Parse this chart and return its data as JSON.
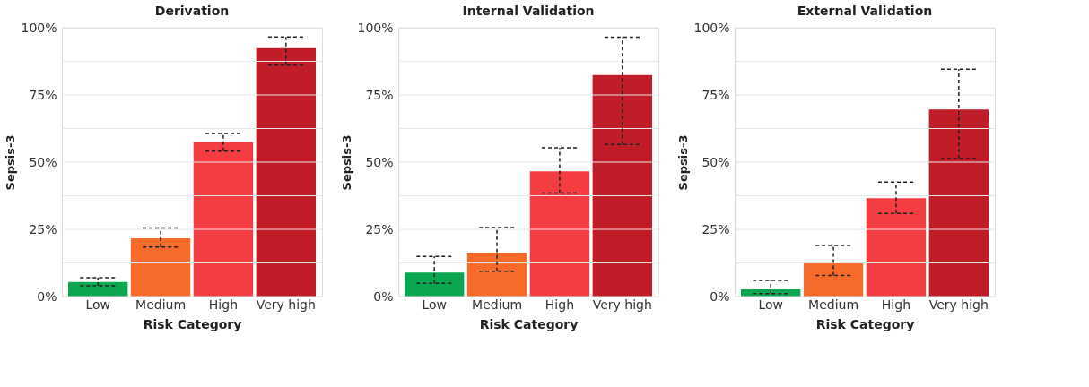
{
  "chart_data": [
    {
      "type": "bar",
      "title": "Derivation",
      "xlabel": "Risk Category",
      "ylabel": "Sepsis-3",
      "categories": [
        "Low",
        "Medium",
        "High",
        "Very high"
      ],
      "values": [
        5.4,
        21.7,
        57.5,
        92.4
      ],
      "errors": [
        [
          4.0,
          7.0
        ],
        [
          18.4,
          25.5
        ],
        [
          54.1,
          60.7
        ],
        [
          86.1,
          96.6
        ]
      ],
      "colors": [
        "#0aa650",
        "#f76b2a",
        "#f43c43",
        "#c11d29"
      ],
      "ylim": [
        0,
        100
      ],
      "yticks": [
        {
          "value": 0,
          "label": "0%"
        },
        {
          "value": 12.5,
          "label": null
        },
        {
          "value": 25,
          "label": "25%"
        },
        {
          "value": 37.5,
          "label": null
        },
        {
          "value": 50,
          "label": "50%"
        },
        {
          "value": 62.5,
          "label": null
        },
        {
          "value": 75,
          "label": "75%"
        },
        {
          "value": 87.5,
          "label": null
        },
        {
          "value": 100,
          "label": "100%"
        }
      ],
      "grid": "y"
    },
    {
      "type": "bar",
      "title": "Internal Validation",
      "xlabel": "Risk Category",
      "ylabel": "Sepsis-3",
      "categories": [
        "Low",
        "Medium",
        "High",
        "Very high"
      ],
      "values": [
        8.9,
        16.3,
        46.6,
        82.4
      ],
      "errors": [
        [
          4.9,
          14.9
        ],
        [
          9.4,
          25.7
        ],
        [
          38.5,
          55.3
        ],
        [
          56.6,
          96.5
        ]
      ],
      "colors": [
        "#0aa650",
        "#f76b2a",
        "#f43c43",
        "#c11d29"
      ],
      "ylim": [
        0,
        100
      ],
      "yticks": [
        {
          "value": 0,
          "label": "0%"
        },
        {
          "value": 12.5,
          "label": null
        },
        {
          "value": 25,
          "label": "25%"
        },
        {
          "value": 37.5,
          "label": null
        },
        {
          "value": 50,
          "label": "50%"
        },
        {
          "value": 62.5,
          "label": null
        },
        {
          "value": 75,
          "label": "75%"
        },
        {
          "value": 87.5,
          "label": null
        },
        {
          "value": 100,
          "label": "100%"
        }
      ],
      "grid": "y"
    },
    {
      "type": "bar",
      "title": "External Validation",
      "xlabel": "Risk Category",
      "ylabel": "Sepsis-3",
      "categories": [
        "Low",
        "Medium",
        "High",
        "Very high"
      ],
      "values": [
        2.7,
        12.5,
        36.6,
        69.6
      ],
      "errors": [
        [
          1.1,
          6.0
        ],
        [
          7.8,
          19.0
        ],
        [
          30.9,
          42.6
        ],
        [
          51.3,
          84.6
        ]
      ],
      "colors": [
        "#0aa650",
        "#f76b2a",
        "#f43c43",
        "#c11d29"
      ],
      "ylim": [
        0,
        100
      ],
      "yticks": [
        {
          "value": 0,
          "label": "0%"
        },
        {
          "value": 12.5,
          "label": null
        },
        {
          "value": 25,
          "label": "25%"
        },
        {
          "value": 37.5,
          "label": null
        },
        {
          "value": 50,
          "label": "50%"
        },
        {
          "value": 62.5,
          "label": null
        },
        {
          "value": 75,
          "label": "75%"
        },
        {
          "value": 87.5,
          "label": null
        },
        {
          "value": 100,
          "label": "100%"
        }
      ],
      "grid": "y"
    }
  ]
}
